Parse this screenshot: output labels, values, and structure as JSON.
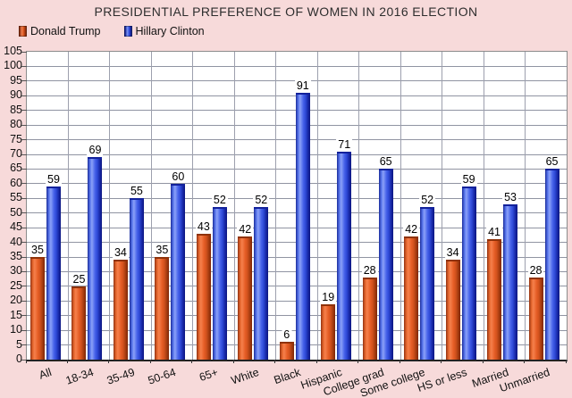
{
  "title": "PRESIDENTIAL PREFERENCE OF WOMEN IN 2016 ELECTION",
  "legend": {
    "items": [
      {
        "label": "Donald Trump",
        "key": "trump"
      },
      {
        "label": "Hillary Clinton",
        "key": "clinton"
      }
    ]
  },
  "colors": {
    "background": "#f7dada",
    "plot_background": "#ffffff",
    "trump_bar": "#e05a22",
    "trump_edge": "#8a2e0e",
    "clinton_bar": "#3a57e8",
    "clinton_edge": "#101c85",
    "gridline": "#9094a2",
    "plot_border": "#8c8c8c"
  },
  "chart_data": {
    "type": "bar",
    "title": "PRESIDENTIAL PREFERENCE OF WOMEN IN 2016 ELECTION",
    "categories": [
      "All",
      "18-34",
      "35-49",
      "50-64",
      "65+",
      "White",
      "Black",
      "Hispanic",
      "College grad",
      "Some college",
      "HS or less",
      "Married",
      "Unmarried"
    ],
    "series": [
      {
        "name": "Donald Trump",
        "values": [
          35,
          25,
          34,
          35,
          43,
          42,
          6,
          19,
          28,
          42,
          34,
          41,
          28
        ]
      },
      {
        "name": "Hillary Clinton",
        "values": [
          59,
          69,
          55,
          60,
          52,
          52,
          91,
          71,
          65,
          52,
          59,
          53,
          65
        ]
      }
    ],
    "xlabel": "",
    "ylabel": "",
    "ylim": [
      0,
      105
    ],
    "ytick_step": 5,
    "grid": true,
    "data_labels": true,
    "legend_position": "top-left"
  }
}
